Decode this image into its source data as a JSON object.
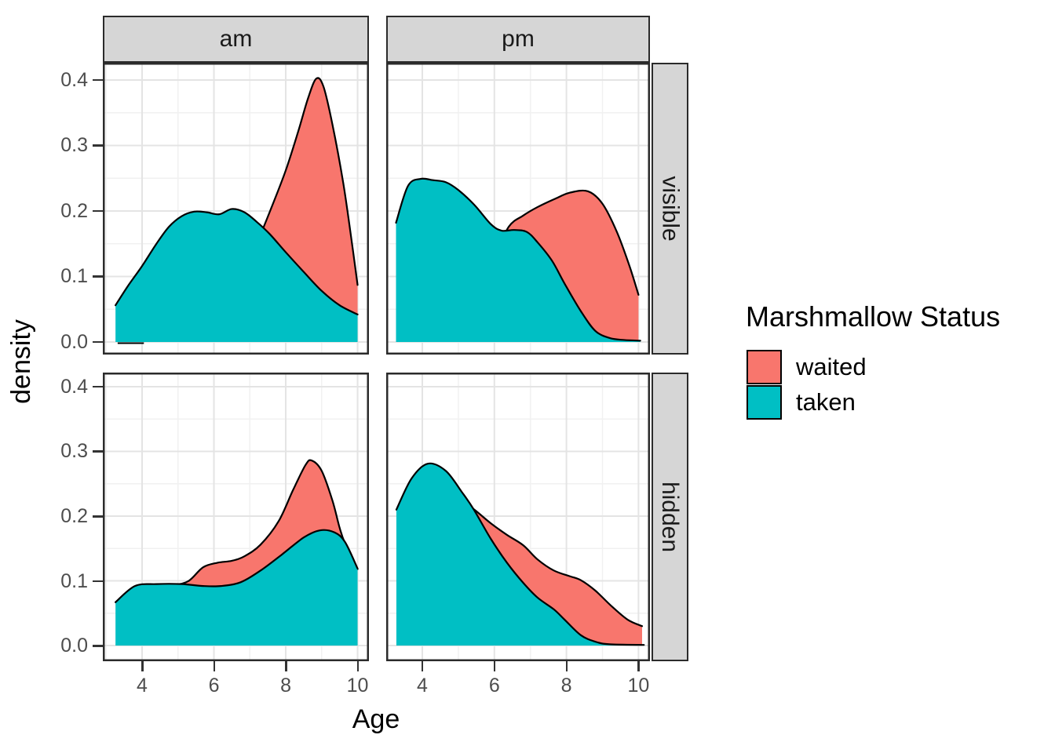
{
  "chart_data": {
    "type": "area",
    "title": "",
    "xlabel": "Age",
    "ylabel": "density",
    "x_ticks": [
      4,
      6,
      8,
      10
    ],
    "x_tick_labels": [
      "4",
      "6",
      "8",
      "10"
    ],
    "x_minor": [
      3,
      5,
      7,
      9
    ],
    "y_ticks": [
      0,
      0.1,
      0.2,
      0.3,
      0.4
    ],
    "y_tick_labels": [
      "0.0",
      "0.1",
      "0.2",
      "0.3",
      "0.4"
    ],
    "y_minor": [
      0.05,
      0.15,
      0.25,
      0.35
    ],
    "xlim": [
      2.9,
      10.32
    ],
    "ylim": [
      -0.02,
      0.425
    ],
    "grid": true,
    "facet_cols": [
      "am",
      "pm"
    ],
    "facet_rows": [
      "visible",
      "hidden"
    ],
    "legend": {
      "title": "Marshmallow Status",
      "position": "right",
      "entries": [
        {
          "name": "waited",
          "label": "waited",
          "color": "#F8766D"
        },
        {
          "name": "taken",
          "label": "taken",
          "color": "#00BFC4"
        }
      ]
    },
    "outline_color": "#000000",
    "panels": [
      {
        "facet_col": "am",
        "facet_row": "visible",
        "series": [
          {
            "name": "waited",
            "points": [
              [
                3.32,
                0.002
              ],
              [
                4.0,
                0.003
              ],
              [
                4.6,
                0.008
              ],
              [
                5.2,
                0.018
              ],
              [
                5.8,
                0.038
              ],
              [
                6.4,
                0.075
              ],
              [
                6.9,
                0.118
              ],
              [
                7.25,
                0.158
              ],
              [
                7.6,
                0.205
              ],
              [
                8.0,
                0.262
              ],
              [
                8.35,
                0.322
              ],
              [
                8.62,
                0.372
              ],
              [
                8.85,
                0.402
              ],
              [
                9.05,
                0.39
              ],
              [
                9.3,
                0.332
              ],
              [
                9.6,
                0.243
              ],
              [
                9.82,
                0.16
              ],
              [
                10.0,
                0.087
              ]
            ]
          },
          {
            "name": "taken",
            "points": [
              [
                3.26,
                0.056
              ],
              [
                3.6,
                0.085
              ],
              [
                4.0,
                0.116
              ],
              [
                4.4,
                0.15
              ],
              [
                4.75,
                0.176
              ],
              [
                5.1,
                0.192
              ],
              [
                5.45,
                0.199
              ],
              [
                5.8,
                0.198
              ],
              [
                6.15,
                0.195
              ],
              [
                6.5,
                0.203
              ],
              [
                6.85,
                0.198
              ],
              [
                7.2,
                0.183
              ],
              [
                7.55,
                0.165
              ],
              [
                8.0,
                0.137
              ],
              [
                8.5,
                0.107
              ],
              [
                9.0,
                0.078
              ],
              [
                9.5,
                0.056
              ],
              [
                10.0,
                0.042
              ]
            ]
          }
        ],
        "tail_segment": [
          [
            3.32,
            0
          ],
          [
            4.05,
            0
          ]
        ]
      },
      {
        "facet_col": "pm",
        "facet_row": "visible",
        "series": [
          {
            "name": "waited",
            "points": [
              [
                3.45,
                0.002
              ],
              [
                4.2,
                0.01
              ],
              [
                5.0,
                0.036
              ],
              [
                5.6,
                0.082
              ],
              [
                6.0,
                0.13
              ],
              [
                6.4,
                0.176
              ],
              [
                6.8,
                0.193
              ],
              [
                7.2,
                0.206
              ],
              [
                7.7,
                0.219
              ],
              [
                8.1,
                0.228
              ],
              [
                8.6,
                0.23
              ],
              [
                9.0,
                0.211
              ],
              [
                9.4,
                0.168
              ],
              [
                9.75,
                0.116
              ],
              [
                10.0,
                0.072
              ]
            ]
          },
          {
            "name": "taken",
            "points": [
              [
                3.27,
                0.182
              ],
              [
                3.6,
                0.238
              ],
              [
                3.95,
                0.249
              ],
              [
                4.3,
                0.247
              ],
              [
                4.65,
                0.244
              ],
              [
                5.0,
                0.232
              ],
              [
                5.45,
                0.209
              ],
              [
                5.9,
                0.18
              ],
              [
                6.2,
                0.17
              ],
              [
                6.55,
                0.171
              ],
              [
                6.9,
                0.168
              ],
              [
                7.2,
                0.152
              ],
              [
                7.6,
                0.124
              ],
              [
                7.95,
                0.089
              ],
              [
                8.4,
                0.047
              ],
              [
                8.8,
                0.017
              ],
              [
                9.2,
                0.006
              ],
              [
                9.6,
                0.003
              ],
              [
                10.05,
                0.002
              ]
            ]
          }
        ]
      },
      {
        "facet_col": "am",
        "facet_row": "hidden",
        "series": [
          {
            "name": "waited",
            "points": [
              [
                3.3,
                0.066
              ],
              [
                3.8,
                0.091
              ],
              [
                4.4,
                0.094
              ],
              [
                4.9,
                0.094
              ],
              [
                5.3,
                0.1
              ],
              [
                5.7,
                0.121
              ],
              [
                6.1,
                0.128
              ],
              [
                6.5,
                0.131
              ],
              [
                6.85,
                0.138
              ],
              [
                7.3,
                0.156
              ],
              [
                7.8,
                0.192
              ],
              [
                8.2,
                0.24
              ],
              [
                8.55,
                0.279
              ],
              [
                8.72,
                0.286
              ],
              [
                9.0,
                0.27
              ],
              [
                9.3,
                0.224
              ],
              [
                9.5,
                0.182
              ],
              [
                9.65,
                0.158
              ],
              [
                10.0,
                0.118
              ]
            ]
          },
          {
            "name": "taken",
            "points": [
              [
                3.26,
                0.067
              ],
              [
                3.8,
                0.092
              ],
              [
                4.4,
                0.095
              ],
              [
                5.1,
                0.095
              ],
              [
                5.7,
                0.092
              ],
              [
                6.2,
                0.092
              ],
              [
                6.75,
                0.098
              ],
              [
                7.3,
                0.116
              ],
              [
                7.9,
                0.141
              ],
              [
                8.5,
                0.167
              ],
              [
                8.95,
                0.178
              ],
              [
                9.35,
                0.175
              ],
              [
                9.65,
                0.16
              ],
              [
                10.0,
                0.119
              ]
            ]
          }
        ]
      },
      {
        "facet_col": "pm",
        "facet_row": "hidden",
        "series": [
          {
            "name": "waited",
            "points": [
              [
                3.45,
                0.03
              ],
              [
                4.0,
                0.12
              ],
              [
                4.5,
                0.205
              ],
              [
                5.0,
                0.226
              ],
              [
                5.42,
                0.211
              ],
              [
                5.9,
                0.189
              ],
              [
                6.35,
                0.171
              ],
              [
                6.8,
                0.155
              ],
              [
                7.2,
                0.133
              ],
              [
                7.65,
                0.116
              ],
              [
                8.1,
                0.107
              ],
              [
                8.4,
                0.101
              ],
              [
                8.8,
                0.085
              ],
              [
                9.25,
                0.061
              ],
              [
                9.7,
                0.04
              ],
              [
                10.1,
                0.03
              ]
            ]
          },
          {
            "name": "taken",
            "points": [
              [
                3.28,
                0.21
              ],
              [
                3.7,
                0.258
              ],
              [
                4.15,
                0.281
              ],
              [
                4.65,
                0.27
              ],
              [
                5.1,
                0.237
              ],
              [
                5.42,
                0.211
              ],
              [
                5.9,
                0.165
              ],
              [
                6.35,
                0.128
              ],
              [
                6.8,
                0.097
              ],
              [
                7.2,
                0.074
              ],
              [
                7.65,
                0.056
              ],
              [
                7.95,
                0.04
              ],
              [
                8.4,
                0.016
              ],
              [
                8.8,
                0.006
              ],
              [
                9.2,
                0.002
              ],
              [
                10.15,
                0.001
              ]
            ]
          }
        ]
      }
    ]
  }
}
